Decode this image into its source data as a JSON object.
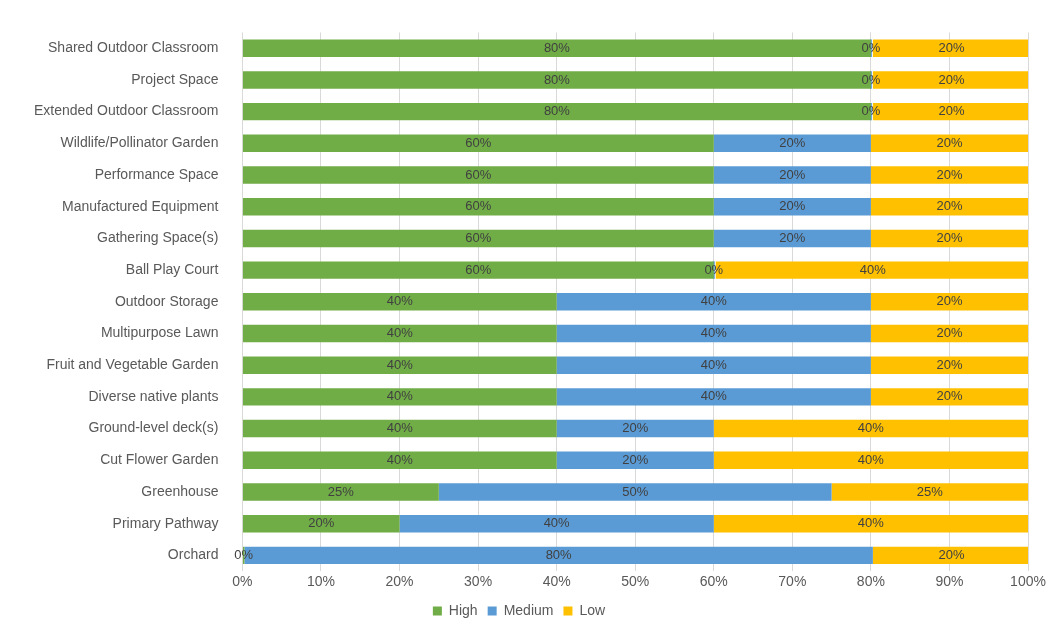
{
  "chart_data": {
    "type": "bar",
    "orientation": "horizontal",
    "stacked": true,
    "categories": [
      "Shared Outdoor Classroom",
      "Project Space",
      "Extended Outdoor Classroom",
      "Wildlife/Pollinator Garden",
      "Performance Space",
      "Manufactured Equipment",
      "Gathering Space(s)",
      "Ball Play Court",
      "Outdoor Storage",
      "Multipurpose Lawn",
      "Fruit and Vegetable Garden",
      "Diverse native plants",
      "Ground-level deck(s)",
      "Cut Flower Garden",
      "Greenhouse",
      "Primary Pathway",
      "Orchard"
    ],
    "series": [
      {
        "name": "High",
        "color": "#70ad47",
        "values": [
          80,
          80,
          80,
          60,
          60,
          60,
          60,
          60,
          40,
          40,
          40,
          40,
          40,
          40,
          25,
          20,
          0
        ],
        "value_labels": [
          "80%",
          "80%",
          "80%",
          "60%",
          "60%",
          "60%",
          "60%",
          "60%",
          "40%",
          "40%",
          "40%",
          "40%",
          "40%",
          "40%",
          "25%",
          "20%",
          "0%"
        ]
      },
      {
        "name": "Medium",
        "color": "#5b9bd5",
        "values": [
          0,
          0,
          0,
          20,
          20,
          20,
          20,
          0,
          40,
          40,
          40,
          40,
          20,
          20,
          50,
          40,
          80
        ],
        "value_labels": [
          "0%",
          "0%",
          "0%",
          "20%",
          "20%",
          "20%",
          "20%",
          "0%",
          "40%",
          "40%",
          "40%",
          "40%",
          "20%",
          "20%",
          "50%",
          "40%",
          "80%"
        ]
      },
      {
        "name": "Low",
        "color": "#ffc000",
        "values": [
          20,
          20,
          20,
          20,
          20,
          20,
          20,
          40,
          20,
          20,
          20,
          20,
          40,
          40,
          25,
          40,
          20
        ],
        "value_labels": [
          "20%",
          "20%",
          "20%",
          "20%",
          "20%",
          "20%",
          "20%",
          "40%",
          "20%",
          "20%",
          "20%",
          "20%",
          "40%",
          "40%",
          "25%",
          "40%",
          "20%"
        ]
      }
    ],
    "xlim": [
      0,
      100
    ],
    "xticks": [
      {
        "value": 0,
        "label": "0%"
      },
      {
        "value": 10,
        "label": "10%"
      },
      {
        "value": 20,
        "label": "20%"
      },
      {
        "value": 30,
        "label": "30%"
      },
      {
        "value": 40,
        "label": "40%"
      },
      {
        "value": 50,
        "label": "50%"
      },
      {
        "value": 60,
        "label": "60%"
      },
      {
        "value": 70,
        "label": "70%"
      },
      {
        "value": 80,
        "label": "80%"
      },
      {
        "value": 90,
        "label": "90%"
      },
      {
        "value": 100,
        "label": "100%"
      }
    ],
    "grid": "x",
    "legend": "bottom"
  }
}
